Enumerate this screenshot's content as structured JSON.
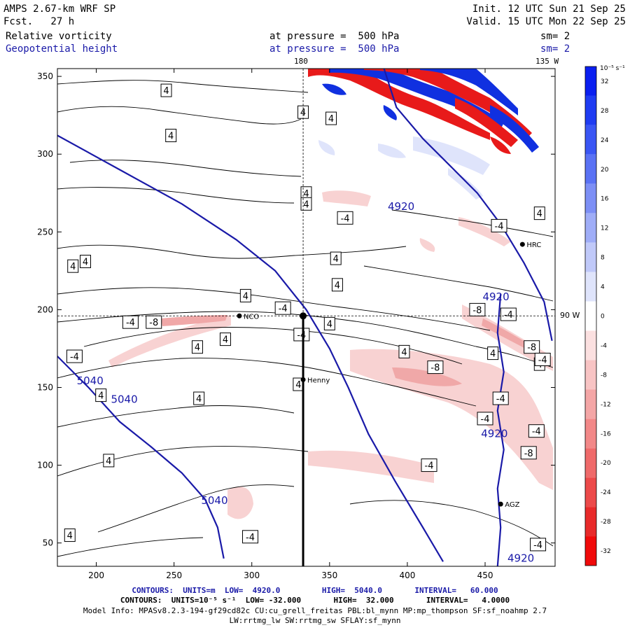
{
  "header": {
    "title": "AMPS 2.67-km WRF SP",
    "forecast": "Fcst.   27 h",
    "init": "Init. 12 UTC Sun 21 Sep 25",
    "valid": "Valid. 15 UTC Mon 22 Sep 25",
    "field1_name": "Relative vorticity",
    "field1_level": "at pressure =  500 hPa",
    "field1_sm": "sm= 2",
    "field2_name": "Geopotential height",
    "field2_level": "at pressure =  500 hPa",
    "field2_sm": "sm= 2",
    "lon_label_180": "180",
    "lon_label_135": "135 W",
    "lon_label_90": "90 W"
  },
  "colorbar": {
    "unit": "10⁻⁵ s⁻¹",
    "levels": [
      32,
      28,
      24,
      20,
      16,
      12,
      8,
      4,
      0,
      -4,
      -8,
      -12,
      -16,
      -20,
      -24,
      -28,
      -32
    ],
    "colors": [
      "#0a1ff0",
      "#1f3cf2",
      "#3a56f4",
      "#5a72f4",
      "#7d8ff5",
      "#9fadf7",
      "#c0c9f9",
      "#dfe4fb",
      "#ffffff",
      "#fbe0e0",
      "#f8c4c4",
      "#f4a6a6",
      "#f28888",
      "#ef6a6a",
      "#ec4a4a",
      "#e82a2a",
      "#f00a0a"
    ]
  },
  "chart_data": {
    "type": "contour-map",
    "xlim": [
      175,
      495
    ],
    "ylim": [
      35,
      355
    ],
    "xticks": [
      200,
      250,
      300,
      350,
      400,
      450
    ],
    "yticks": [
      50,
      100,
      150,
      200,
      250,
      300,
      350
    ],
    "crosshair": {
      "x": 333,
      "y": 196
    },
    "height_contours": [
      {
        "label": "4920",
        "points": [
          [
            385,
            355
          ],
          [
            393,
            330
          ],
          [
            410,
            310
          ],
          [
            425,
            295
          ],
          [
            445,
            275
          ],
          [
            460,
            255
          ],
          [
            475,
            230
          ],
          [
            488,
            205
          ],
          [
            493,
            180
          ]
        ]
      },
      {
        "label": "4920",
        "points": [
          [
            460,
            210
          ],
          [
            458,
            185
          ],
          [
            462,
            160
          ],
          [
            458,
            135
          ],
          [
            462,
            110
          ],
          [
            458,
            85
          ],
          [
            460,
            60
          ],
          [
            458,
            35
          ]
        ]
      },
      {
        "label": "5040",
        "points": [
          [
            175,
            312
          ],
          [
            215,
            290
          ],
          [
            255,
            268
          ],
          [
            290,
            245
          ],
          [
            315,
            225
          ],
          [
            335,
            200
          ],
          [
            350,
            175
          ],
          [
            362,
            150
          ],
          [
            375,
            120
          ],
          [
            392,
            90
          ],
          [
            410,
            60
          ],
          [
            423,
            38
          ]
        ]
      },
      {
        "label": "5040",
        "points": [
          [
            175,
            170
          ],
          [
            195,
            150
          ],
          [
            215,
            128
          ],
          [
            235,
            112
          ],
          [
            255,
            95
          ],
          [
            270,
            78
          ],
          [
            278,
            60
          ],
          [
            282,
            40
          ]
        ]
      }
    ],
    "vorticity_labels": [
      {
        "text": "4",
        "x": 245,
        "y": 341
      },
      {
        "text": "4",
        "x": 333,
        "y": 327
      },
      {
        "text": "4",
        "x": 351,
        "y": 323
      },
      {
        "text": "4",
        "x": 248,
        "y": 312
      },
      {
        "text": "4",
        "x": 335,
        "y": 275
      },
      {
        "text": "4",
        "x": 335,
        "y": 268
      },
      {
        "text": "-4",
        "x": 360,
        "y": 259
      },
      {
        "text": "4",
        "x": 185,
        "y": 228
      },
      {
        "text": "4",
        "x": 193,
        "y": 231
      },
      {
        "text": "4",
        "x": 354,
        "y": 233
      },
      {
        "text": "4",
        "x": 355,
        "y": 216
      },
      {
        "text": "4",
        "x": 296,
        "y": 209
      },
      {
        "text": "-4",
        "x": 320,
        "y": 201
      },
      {
        "text": "-4",
        "x": 222,
        "y": 192
      },
      {
        "text": "-8",
        "x": 237,
        "y": 192
      },
      {
        "text": "4",
        "x": 350,
        "y": 191
      },
      {
        "text": "-4",
        "x": 332,
        "y": 184
      },
      {
        "text": "4",
        "x": 265,
        "y": 176
      },
      {
        "text": "4",
        "x": 283,
        "y": 181
      },
      {
        "text": "-4",
        "x": 186,
        "y": 170
      },
      {
        "text": "4",
        "x": 203,
        "y": 145
      },
      {
        "text": "4",
        "x": 266,
        "y": 143
      },
      {
        "text": "4",
        "x": 330,
        "y": 152
      },
      {
        "text": "4",
        "x": 398,
        "y": 173
      },
      {
        "text": "4",
        "x": 455,
        "y": 172
      },
      {
        "text": "-8",
        "x": 418,
        "y": 163
      },
      {
        "text": "-8",
        "x": 445,
        "y": 200
      },
      {
        "text": "-8",
        "x": 480,
        "y": 176
      },
      {
        "text": "-4",
        "x": 465,
        "y": 197
      },
      {
        "text": "4",
        "x": 485,
        "y": 165
      },
      {
        "text": "-4",
        "x": 487,
        "y": 168
      },
      {
        "text": "-4",
        "x": 460,
        "y": 143
      },
      {
        "text": "-4",
        "x": 450,
        "y": 130
      },
      {
        "text": "-4",
        "x": 483,
        "y": 122
      },
      {
        "text": "-8",
        "x": 478,
        "y": 108
      },
      {
        "text": "4",
        "x": 208,
        "y": 103
      },
      {
        "text": "-4",
        "x": 414,
        "y": 100
      },
      {
        "text": "-4",
        "x": 299,
        "y": 54
      },
      {
        "text": "4",
        "x": 183,
        "y": 55
      },
      {
        "text": "-4",
        "x": 484,
        "y": 49
      },
      {
        "text": "4",
        "x": 485,
        "y": 262
      },
      {
        "text": "-4",
        "x": 459,
        "y": 254
      }
    ],
    "stations": [
      {
        "name": "NCO",
        "x": 292,
        "y": 196
      },
      {
        "name": "Henny",
        "x": 333,
        "y": 155
      },
      {
        "name": "HRC",
        "x": 474,
        "y": 242
      },
      {
        "name": "AGZ",
        "x": 460,
        "y": 75
      }
    ]
  },
  "footer": {
    "line1": "CONTOURS:  UNITS=m  LOW=  4920.0         HIGH=  5040.0       INTERVAL=   60.000",
    "line2": "CONTOURS:  UNITS=10⁻⁵ s⁻¹  LOW= -32.000       HIGH=  32.000       INTERVAL=   4.0000",
    "line3": "Model Info: MPASv8.2.3-194-gf29cd82c CU:cu_grell_freitas PBL:bl_mynn MP:mp_thompson SF:sf_noahmp 2.7",
    "line4": "LW:rrtmg_lw SW:rrtmg_sw SFLAY:sf_mynn"
  }
}
